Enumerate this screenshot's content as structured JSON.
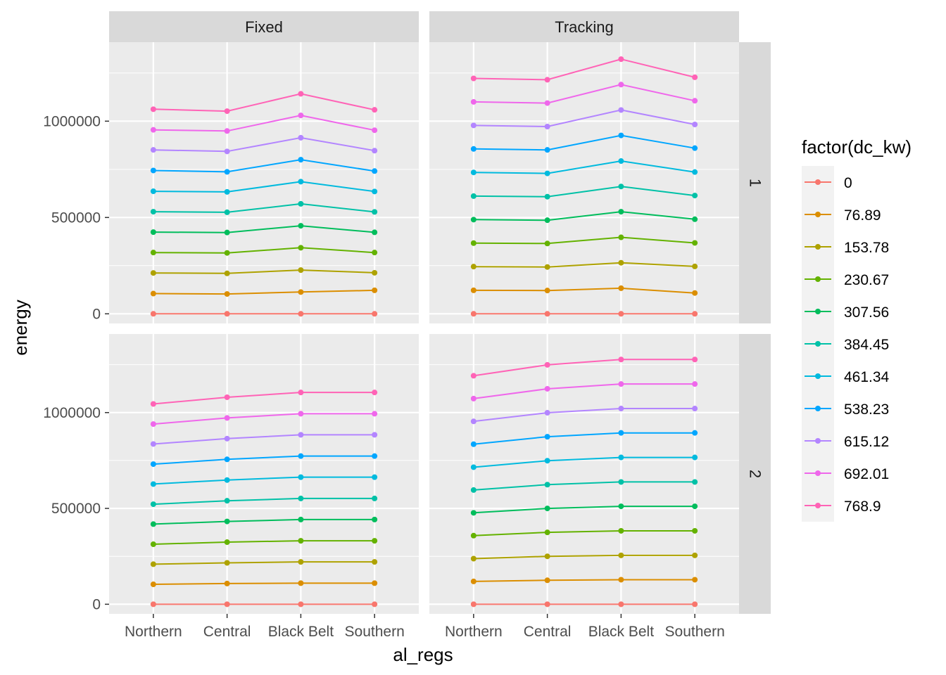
{
  "chart_data": {
    "type": "line",
    "x_axis_title": "al_regs",
    "y_axis_title": "energy",
    "categories": [
      "Northern",
      "Central",
      "Black Belt",
      "Southern"
    ],
    "y_ticks": [
      0,
      500000,
      1000000
    ],
    "y_tick_labels": [
      "0",
      "500000",
      "1000000"
    ],
    "ylim": [
      -50000,
      1410000
    ],
    "grid": true,
    "col_facets": [
      "Fixed",
      "Tracking"
    ],
    "row_facets": [
      "1",
      "2"
    ],
    "legend": {
      "title": "factor(dc_kw)",
      "position": "right",
      "labels": [
        "0",
        "76.89",
        "153.78",
        "230.67",
        "307.56",
        "384.45",
        "461.34",
        "538.23",
        "615.12",
        "692.01",
        "768.9"
      ],
      "colors": [
        "#F8766D",
        "#DB8E00",
        "#AEA200",
        "#64B200",
        "#00BD5C",
        "#00C1A7",
        "#00BADE",
        "#00A6FF",
        "#B385FF",
        "#EF67EB",
        "#FF63B6"
      ]
    },
    "panels": [
      {
        "col": "Fixed",
        "row": "1",
        "series": [
          {
            "name": "0",
            "values": [
              0,
              0,
              0,
              0
            ]
          },
          {
            "name": "76.89",
            "values": [
              105000,
              103000,
              113000,
              122000
            ]
          },
          {
            "name": "153.78",
            "values": [
              212000,
              210000,
              227000,
              213000
            ]
          },
          {
            "name": "230.67",
            "values": [
              318000,
              316000,
              343000,
              318000
            ]
          },
          {
            "name": "307.56",
            "values": [
              424000,
              422000,
              457000,
              423000
            ]
          },
          {
            "name": "384.45",
            "values": [
              530000,
              527000,
              571000,
              529000
            ]
          },
          {
            "name": "461.34",
            "values": [
              636000,
              633000,
              686000,
              635000
            ]
          },
          {
            "name": "538.23",
            "values": [
              744000,
              737000,
              800000,
              741000
            ]
          },
          {
            "name": "615.12",
            "values": [
              851000,
              843000,
              914000,
              847000
            ]
          },
          {
            "name": "692.01",
            "values": [
              955000,
              949000,
              1030000,
              953000
            ]
          },
          {
            "name": "768.9",
            "values": [
              1062000,
              1052000,
              1142000,
              1059000
            ]
          }
        ]
      },
      {
        "col": "Tracking",
        "row": "1",
        "series": [
          {
            "name": "0",
            "values": [
              0,
              0,
              0,
              0
            ]
          },
          {
            "name": "76.89",
            "values": [
              122000,
              121000,
              133000,
              108000
            ]
          },
          {
            "name": "153.78",
            "values": [
              245000,
              243000,
              265000,
              246000
            ]
          },
          {
            "name": "230.67",
            "values": [
              367000,
              365000,
              397000,
              368000
            ]
          },
          {
            "name": "307.56",
            "values": [
              489000,
              486000,
              530000,
              491000
            ]
          },
          {
            "name": "384.45",
            "values": [
              611000,
              608000,
              661000,
              614000
            ]
          },
          {
            "name": "461.34",
            "values": [
              734000,
              729000,
              793000,
              736000
            ]
          },
          {
            "name": "538.23",
            "values": [
              856000,
              851000,
              926000,
              860000
            ]
          },
          {
            "name": "615.12",
            "values": [
              978000,
              972000,
              1058000,
              983000
            ]
          },
          {
            "name": "692.01",
            "values": [
              1100000,
              1094000,
              1190000,
              1106000
            ]
          },
          {
            "name": "768.9",
            "values": [
              1222000,
              1215000,
              1322000,
              1228000
            ]
          }
        ]
      },
      {
        "col": "Fixed",
        "row": "2",
        "series": [
          {
            "name": "0",
            "values": [
              0,
              0,
              0,
              0
            ]
          },
          {
            "name": "76.89",
            "values": [
              104000,
              108000,
              110000,
              110000
            ]
          },
          {
            "name": "153.78",
            "values": [
              209000,
              216000,
              221000,
              221000
            ]
          },
          {
            "name": "230.67",
            "values": [
              313000,
              324000,
              331000,
              331000
            ]
          },
          {
            "name": "307.56",
            "values": [
              418000,
              432000,
              442000,
              442000
            ]
          },
          {
            "name": "384.45",
            "values": [
              522000,
              540000,
              552000,
              552000
            ]
          },
          {
            "name": "461.34",
            "values": [
              627000,
              648000,
              663000,
              663000
            ]
          },
          {
            "name": "538.23",
            "values": [
              731000,
              756000,
              773000,
              773000
            ]
          },
          {
            "name": "615.12",
            "values": [
              836000,
              864000,
              884000,
              884000
            ]
          },
          {
            "name": "692.01",
            "values": [
              940000,
              972000,
              994000,
              994000
            ]
          },
          {
            "name": "768.9",
            "values": [
              1045000,
              1080000,
              1105000,
              1105000
            ]
          }
        ]
      },
      {
        "col": "Tracking",
        "row": "2",
        "series": [
          {
            "name": "0",
            "values": [
              0,
              0,
              0,
              0
            ]
          },
          {
            "name": "76.89",
            "values": [
              119000,
              125000,
              128000,
              128000
            ]
          },
          {
            "name": "153.78",
            "values": [
              238000,
              250000,
              255000,
              255000
            ]
          },
          {
            "name": "230.67",
            "values": [
              358000,
              375000,
              383000,
              383000
            ]
          },
          {
            "name": "307.56",
            "values": [
              477000,
              500000,
              511000,
              511000
            ]
          },
          {
            "name": "384.45",
            "values": [
              596000,
              624000,
              638000,
              638000
            ]
          },
          {
            "name": "461.34",
            "values": [
              715000,
              749000,
              766000,
              766000
            ]
          },
          {
            "name": "538.23",
            "values": [
              835000,
              874000,
              894000,
              894000
            ]
          },
          {
            "name": "615.12",
            "values": [
              954000,
              999000,
              1021000,
              1021000
            ]
          },
          {
            "name": "692.01",
            "values": [
              1073000,
              1124000,
              1149000,
              1149000
            ]
          },
          {
            "name": "768.9",
            "values": [
              1192000,
              1249000,
              1277000,
              1277000
            ]
          }
        ]
      }
    ]
  }
}
